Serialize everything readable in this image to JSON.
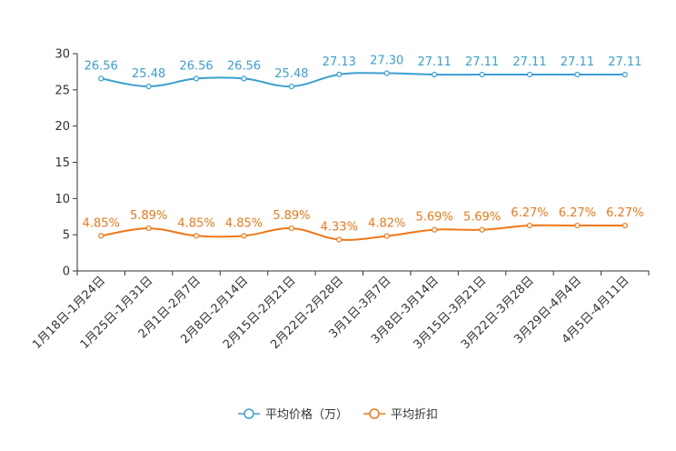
{
  "chart_data": {
    "type": "line",
    "title": "",
    "xlabel": "",
    "ylabel": "",
    "ylim": [
      0,
      30
    ],
    "yticks": [
      0,
      5,
      10,
      15,
      20,
      25,
      30
    ],
    "grid": false,
    "legend_position": "bottom-center",
    "categories": [
      "1月18日-1月24日",
      "1月25日-1月31日",
      "2月1日-2月7日",
      "2月8日-2月14日",
      "2月15日-2月21日",
      "2月22日-2月28日",
      "3月1日-3月7日",
      "3月8日-3月14日",
      "3月15日-3月21日",
      "3月22日-3月28日",
      "3月29日-4月4日",
      "4月5日-4月11日"
    ],
    "series": [
      {
        "name": "平均价格（万）",
        "color": "#3b9fd1",
        "values": [
          26.56,
          25.48,
          26.56,
          26.56,
          25.48,
          27.13,
          27.3,
          27.11,
          27.11,
          27.11,
          27.11,
          27.11
        ],
        "labels": [
          "26.56",
          "25.48",
          "26.56",
          "26.56",
          "25.48",
          "27.13",
          "27.30",
          "27.11",
          "27.11",
          "27.11",
          "27.11",
          "27.11"
        ]
      },
      {
        "name": "平均折扣",
        "color": "#f07818",
        "values": [
          4.85,
          5.89,
          4.85,
          4.85,
          5.89,
          4.33,
          4.82,
          5.69,
          5.69,
          6.27,
          6.27,
          6.27
        ],
        "labels": [
          "4.85%",
          "5.89%",
          "4.85%",
          "4.85%",
          "5.89%",
          "4.33%",
          "4.82%",
          "5.69%",
          "5.69%",
          "6.27%",
          "6.27%",
          "6.27%"
        ]
      }
    ]
  }
}
